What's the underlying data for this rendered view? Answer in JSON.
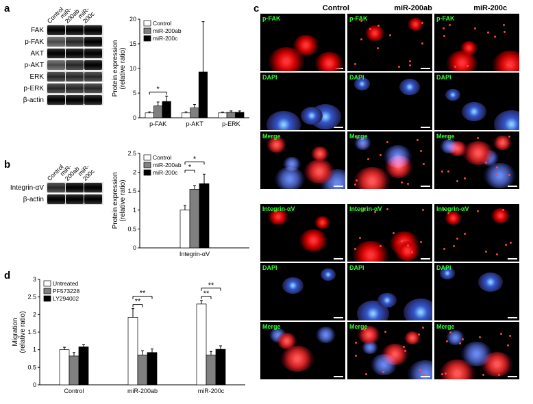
{
  "panels": {
    "a": "a",
    "b": "b",
    "c": "c",
    "d": "d"
  },
  "conditions": [
    "Control",
    "miR-200ab",
    "miR-200c"
  ],
  "wb_a": {
    "rows": [
      "FAK",
      "p-FAK",
      "AKT",
      "p-AKT",
      "ERK",
      "p-ERK",
      "β-actin"
    ]
  },
  "wb_b": {
    "rows": [
      "Integrin-αV",
      "β-actin"
    ]
  },
  "chart_a": {
    "ylabel": "Protein expression\n(relative ratio)",
    "ymax": 20,
    "ytick_step": 5,
    "groups": [
      "p-FAK",
      "p-AKT",
      "p-ERK"
    ],
    "series": [
      "Control",
      "miR-200ab",
      "miR-200c"
    ],
    "colors": [
      "#ffffff",
      "#808080",
      "#000000"
    ],
    "values": {
      "p-FAK": [
        1.0,
        2.4,
        3.3
      ],
      "p-AKT": [
        1.0,
        2.0,
        9.3
      ],
      "p-ERK": [
        1.0,
        1.1,
        1.1
      ]
    },
    "errors": {
      "p-FAK": [
        0.2,
        0.8,
        1.1
      ],
      "p-AKT": [
        0.2,
        0.7,
        10.2
      ],
      "p-ERK": [
        0.15,
        0.3,
        0.3
      ]
    },
    "sig": [
      {
        "group": "p-FAK",
        "pairs": [
          [
            0,
            2
          ]
        ],
        "label": "*"
      }
    ]
  },
  "chart_b": {
    "ylabel": "Protein expression\n(relative ratio)",
    "ymax": 2.5,
    "ytick_step": 0.5,
    "groups": [
      "Integrin-αV"
    ],
    "series": [
      "Control",
      "miR-200ab",
      "miR-200c"
    ],
    "colors": [
      "#ffffff",
      "#808080",
      "#000000"
    ],
    "values": {
      "Integrin-αV": [
        1.0,
        1.55,
        1.7
      ]
    },
    "errors": {
      "Integrin-αV": [
        0.12,
        0.1,
        0.25
      ]
    },
    "sig": [
      {
        "group": "Integrin-αV",
        "pairs": [
          [
            0,
            1
          ],
          [
            0,
            2
          ]
        ],
        "label": "*"
      }
    ]
  },
  "chart_d": {
    "ylabel": "Migration\n(relative ratio)",
    "ymax": 3.0,
    "ytick_step": 0.5,
    "groups": [
      "Control",
      "miR-200ab",
      "miR-200c"
    ],
    "series": [
      "Untreated",
      "PF573228",
      "LY294002"
    ],
    "colors": [
      "#ffffff",
      "#808080",
      "#000000"
    ],
    "values": {
      "Control": [
        1.0,
        0.82,
        1.08
      ],
      "miR-200ab": [
        1.92,
        0.85,
        0.92
      ],
      "miR-200c": [
        2.3,
        0.85,
        1.01
      ]
    },
    "errors": {
      "Control": [
        0.07,
        0.1,
        0.06
      ],
      "miR-200ab": [
        0.25,
        0.12,
        0.1
      ],
      "miR-200c": [
        0.1,
        0.1,
        0.1
      ]
    },
    "sig": [
      {
        "group": "miR-200ab",
        "pairs": [
          [
            0,
            1
          ],
          [
            0,
            2
          ]
        ],
        "label": "**"
      },
      {
        "group": "miR-200c",
        "pairs": [
          [
            0,
            1
          ],
          [
            0,
            2
          ]
        ],
        "label": "**"
      }
    ]
  },
  "micro": {
    "rows_top": [
      "p-FAK",
      "DAPI",
      "Merge"
    ],
    "rows_bot": [
      "Integrin-αV",
      "DAPI",
      "Merge"
    ]
  },
  "style": {
    "axis_color": "#000",
    "tick_fontsize": 9,
    "label_fontsize": 10,
    "bg": "#ffffff"
  }
}
